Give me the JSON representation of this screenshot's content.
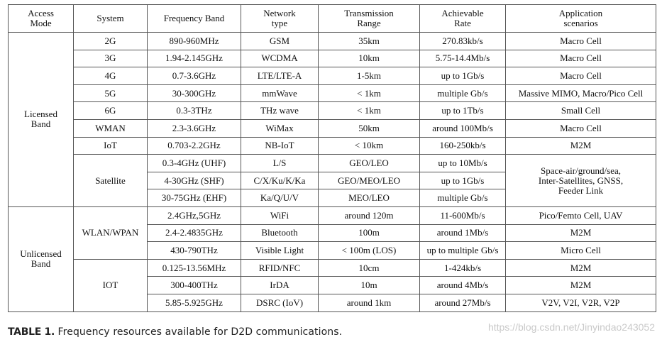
{
  "headers": {
    "access_mode": "Access\nMode",
    "system": "System",
    "frequency_band": "Frequency Band",
    "network_type": "Network\ntype",
    "transmission_range": "Transmission\nRange",
    "achievable_rate": "Achievable\nRate",
    "application_scenarios": "Application\nscenarios"
  },
  "groups": {
    "licensed": "Licensed\nBand",
    "unlicensed": "Unlicensed\nBand"
  },
  "rows": [
    {
      "system": "2G",
      "band": "890-960MHz",
      "net": "GSM",
      "range": "35km",
      "rate": "270.83kb/s",
      "scenario": "Macro Cell"
    },
    {
      "system": "3G",
      "band": "1.94-2.145GHz",
      "net": "WCDMA",
      "range": "10km",
      "rate": "5.75-14.4Mb/s",
      "scenario": "Macro Cell"
    },
    {
      "system": "4G",
      "band": "0.7-3.6GHz",
      "net": "LTE/LTE-A",
      "range": "1-5km",
      "rate": "up to 1Gb/s",
      "scenario": "Macro Cell"
    },
    {
      "system": "5G",
      "band": "30-300GHz",
      "net": "mmWave",
      "range": "< 1km",
      "rate": "multiple Gb/s",
      "scenario": "Massive MIMO, Macro/Pico Cell"
    },
    {
      "system": "6G",
      "band": "0.3-3THz",
      "net": "THz wave",
      "range": "< 1km",
      "rate": "up to 1Tb/s",
      "scenario": "Small Cell"
    },
    {
      "system": "WMAN",
      "band": "2.3-3.6GHz",
      "net": "WiMax",
      "range": "50km",
      "rate": "around 100Mb/s",
      "scenario": "Macro Cell"
    },
    {
      "system": "IoT",
      "band": "0.703-2.2GHz",
      "net": "NB-IoT",
      "range": "< 10km",
      "rate": "160-250kb/s",
      "scenario": "M2M"
    }
  ],
  "satellite": {
    "system": "Satellite",
    "scenario": "Space-air/ground/sea,\nInter-Satellites, GNSS,\nFeeder Link",
    "rows": [
      {
        "band": "0.3-4GHz (UHF)",
        "net": "L/S",
        "range": "GEO/LEO",
        "rate": "up to 10Mb/s"
      },
      {
        "band": "4-30GHz (SHF)",
        "net": "C/X/Ku/K/Ka",
        "range": "GEO/MEO/LEO",
        "rate": "up to 1Gb/s"
      },
      {
        "band": "30-75GHz (EHF)",
        "net": "Ka/Q/U/V",
        "range": "MEO/LEO",
        "rate": "multiple Gb/s"
      }
    ]
  },
  "wlan": {
    "system": "WLAN/WPAN",
    "rows": [
      {
        "band": "2.4GHz,5GHz",
        "net": "WiFi",
        "range": "around 120m",
        "rate": "11-600Mb/s",
        "scenario": "Pico/Femto Cell, UAV"
      },
      {
        "band": "2.4-2.4835GHz",
        "net": "Bluetooth",
        "range": "100m",
        "rate": "around 1Mb/s",
        "scenario": "M2M"
      },
      {
        "band": "430-790THz",
        "net": "Visible Light",
        "range": "< 100m (LOS)",
        "rate": "up to multiple Gb/s",
        "scenario": "Micro Cell"
      }
    ]
  },
  "iot": {
    "system": "IOT",
    "rows": [
      {
        "band": "0.125-13.56MHz",
        "net": "RFID/NFC",
        "range": "10cm",
        "rate": "1-424kb/s",
        "scenario": "M2M"
      },
      {
        "band": "300-400THz",
        "net": "IrDA",
        "range": "10m",
        "rate": "around 4Mb/s",
        "scenario": "M2M"
      },
      {
        "band": "5.85-5.925GHz",
        "net": "DSRC (IoV)",
        "range": "around 1km",
        "rate": "around 27Mb/s",
        "scenario": "V2V, V2I, V2R, V2P"
      }
    ]
  },
  "caption": {
    "label": "TABLE 1.",
    "text": " Frequency resources available for D2D communications."
  },
  "watermark": "https://blog.csdn.net/Jinyindao243052"
}
